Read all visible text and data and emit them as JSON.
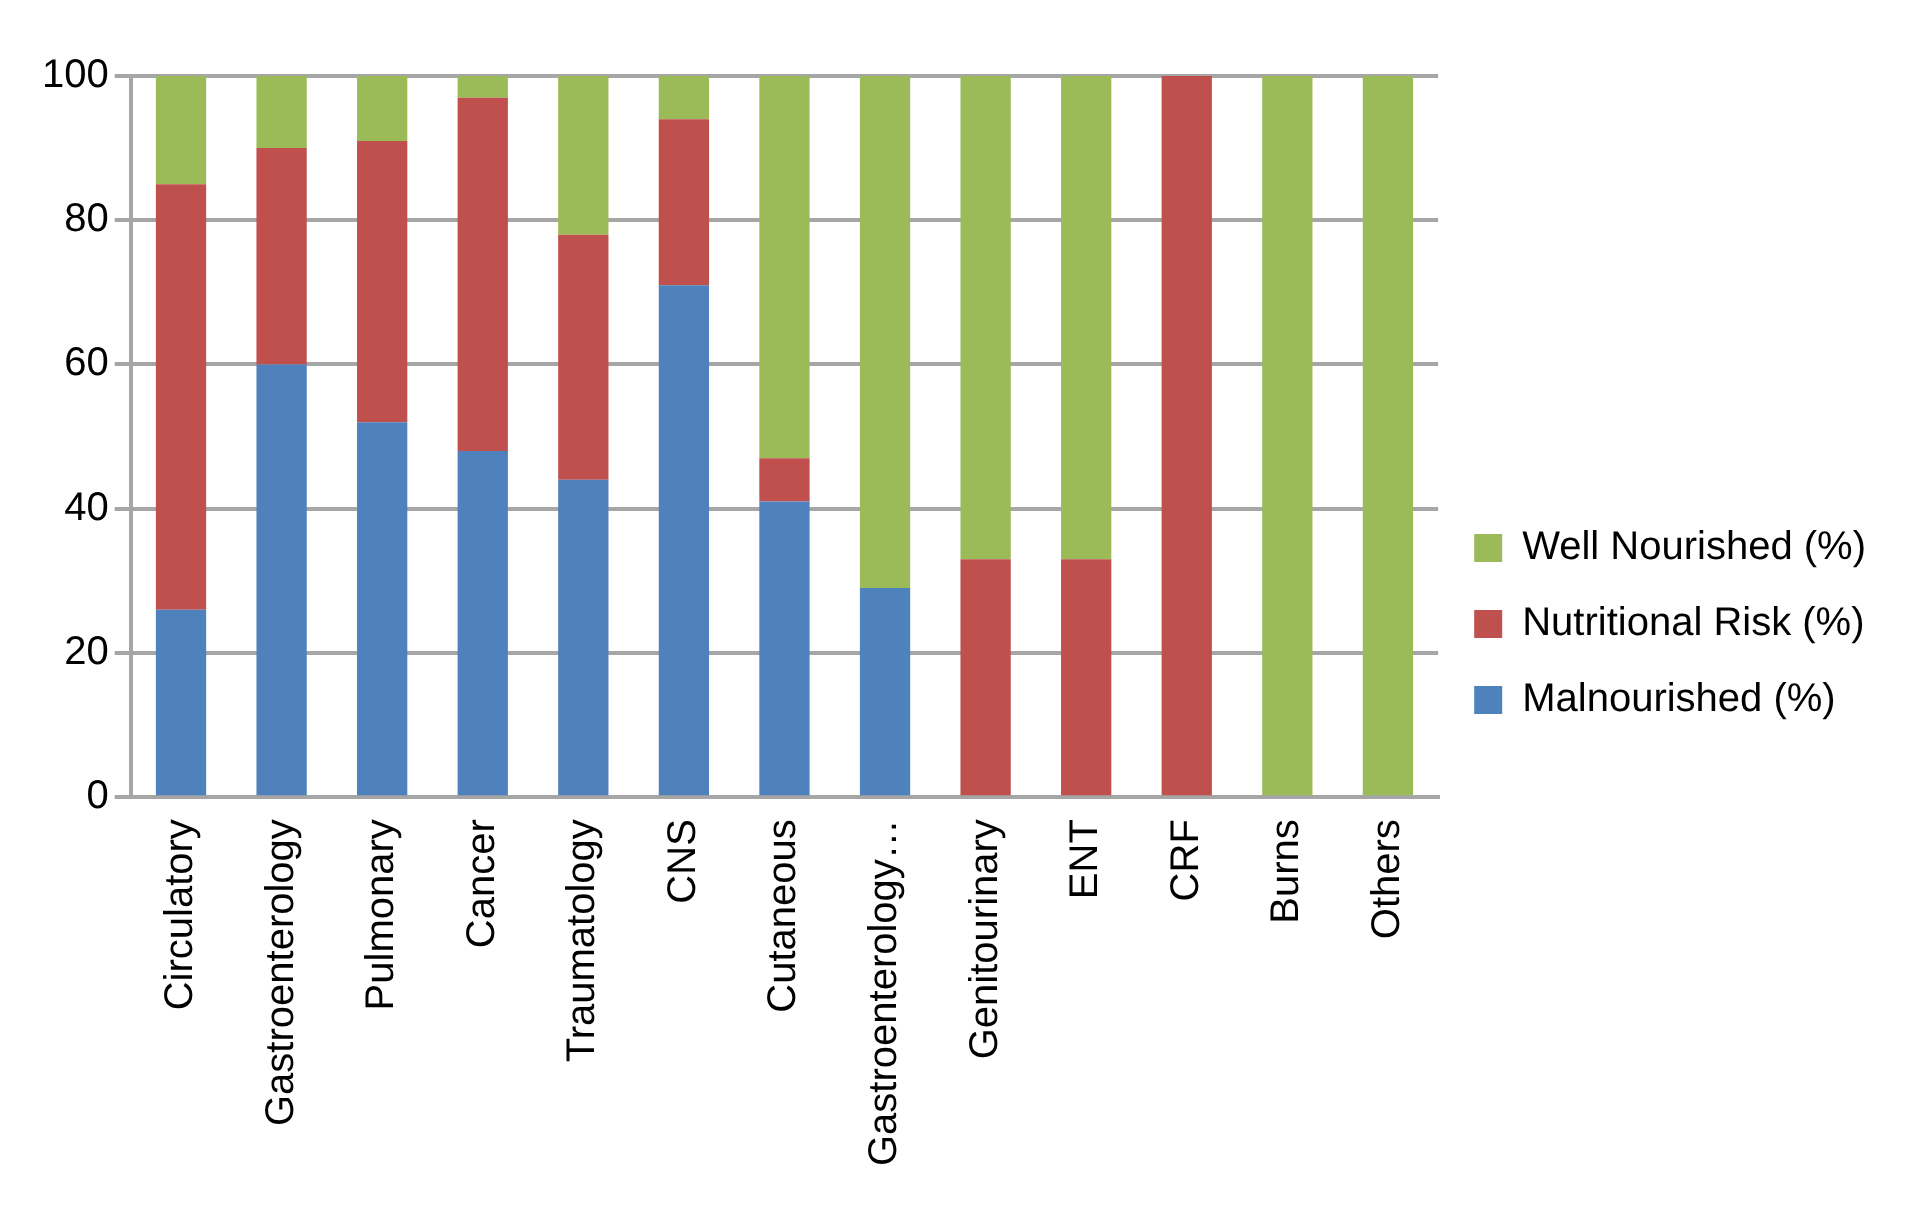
{
  "chart_data": {
    "type": "bar",
    "stacked": true,
    "categories": [
      "Circulatory",
      "Gastroenterology",
      "Pulmonary",
      "Cancer",
      "Traumatology",
      "CNS",
      "Cutaneous",
      "Gastroenterology…",
      "Genitourinary",
      "ENT",
      "CRF",
      "Burns",
      "Others"
    ],
    "series": [
      {
        "name": "Malnourished (%)",
        "color": "#4f81bd",
        "values": [
          26,
          60,
          52,
          48,
          44,
          71,
          41,
          29,
          0,
          0,
          0,
          0,
          0
        ]
      },
      {
        "name": "Nutritional Risk (%)",
        "color": "#c0504d",
        "values": [
          59,
          30,
          39,
          49,
          34,
          23,
          6,
          0,
          33,
          33,
          100,
          0,
          0
        ]
      },
      {
        "name": "Well Nourished (%)",
        "color": "#9bbb59",
        "values": [
          15,
          10,
          9,
          3,
          22,
          6,
          53,
          71,
          67,
          67,
          0,
          100,
          100
        ]
      }
    ],
    "ylim": [
      0,
      100
    ],
    "yticks": [
      0,
      20,
      40,
      60,
      80,
      100
    ],
    "grid": "y",
    "legend": "right"
  }
}
